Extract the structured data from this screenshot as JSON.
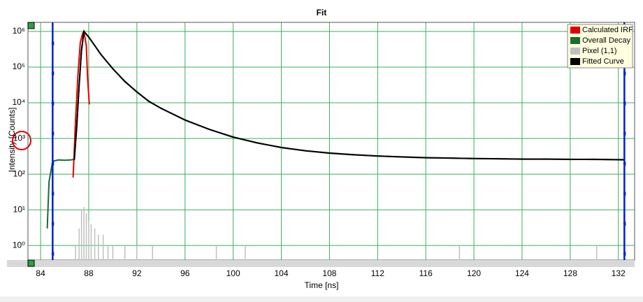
{
  "chart_data": {
    "type": "line",
    "title": "Fit",
    "xlabel": "Time [ns]",
    "ylabel": "Intensity [Counts]",
    "log_y": true,
    "grid": true,
    "legend": "top-right",
    "xlim": [
      82.95,
      133.35
    ],
    "ylim": [
      0.39,
      1800000
    ],
    "xticks": [
      84,
      88,
      92,
      96,
      100,
      104,
      108,
      112,
      116,
      120,
      124,
      128,
      132
    ],
    "yticks": [
      {
        "value": 1,
        "label": "10⁰"
      },
      {
        "value": 10,
        "label": "10¹"
      },
      {
        "value": 100,
        "label": "10²"
      },
      {
        "value": 1000,
        "label": "10³"
      },
      {
        "value": 10000,
        "label": "10⁴"
      },
      {
        "value": 100000,
        "label": "10⁵"
      },
      {
        "value": 1000000,
        "label": "10⁶"
      }
    ],
    "range_markers": [
      85.0,
      132.5
    ],
    "series": [
      {
        "name": "Calculated IRF",
        "color": "#e00000",
        "style": "line",
        "x": [
          86.7,
          86.9,
          87.1,
          87.3,
          87.5,
          87.6,
          87.8,
          87.9,
          88.05
        ],
        "values": [
          80,
          3000,
          60000,
          500000,
          900000,
          1000000,
          400000,
          50000,
          9000
        ]
      },
      {
        "name": "Overall Decay",
        "color": "#1e6b30",
        "style": "line",
        "x": [
          84.55,
          84.7,
          85.0,
          85.5,
          86.0,
          86.5,
          86.8,
          87.0,
          87.2,
          87.4,
          87.6,
          88.0,
          88.5,
          89,
          90,
          91,
          92,
          93,
          94,
          96,
          98,
          100,
          102,
          104,
          106,
          108,
          110,
          112,
          114,
          116,
          118,
          120,
          122,
          124,
          126,
          128,
          130,
          132.5
        ],
        "values": [
          3,
          60,
          230,
          250,
          245,
          250,
          260,
          2100,
          31000,
          290000,
          990000,
          690000,
          405000,
          228000,
          91000,
          39000,
          20500,
          10800,
          7100,
          3250,
          1820,
          1080,
          760,
          550,
          455,
          385,
          348,
          325,
          302,
          288,
          282,
          272,
          270,
          262,
          266,
          258,
          262,
          250
        ]
      },
      {
        "name": "Pixel (1,1)",
        "color": "#c0c0c0",
        "style": "stem",
        "x": [
          86.9,
          87.2,
          87.4,
          87.6,
          87.8,
          88.0,
          88.2,
          88.5,
          88.8,
          89.2,
          89.6,
          90.0,
          91.0,
          92.0,
          93.3,
          98.6,
          101.0,
          118.8,
          130.2
        ],
        "values": [
          1,
          3,
          10,
          12,
          8,
          5,
          4,
          3,
          2,
          2,
          1,
          1,
          1,
          1,
          1,
          1,
          1,
          1,
          1
        ]
      },
      {
        "name": "Fitted Curve",
        "color": "#000000",
        "style": "line",
        "x": [
          86.8,
          87.0,
          87.2,
          87.4,
          87.6,
          88.0,
          88.5,
          89,
          90,
          91,
          92,
          93,
          94,
          96,
          98,
          100,
          102,
          104,
          106,
          108,
          110,
          112,
          116,
          120,
          124,
          128,
          132.5
        ],
        "values": [
          250,
          2000,
          30000,
          300000,
          1000000,
          700000,
          400000,
          230000,
          90000,
          40000,
          20000,
          11000,
          7000,
          3300,
          1800,
          1100,
          750,
          560,
          450,
          390,
          350,
          320,
          290,
          275,
          265,
          260,
          255
        ]
      }
    ]
  }
}
